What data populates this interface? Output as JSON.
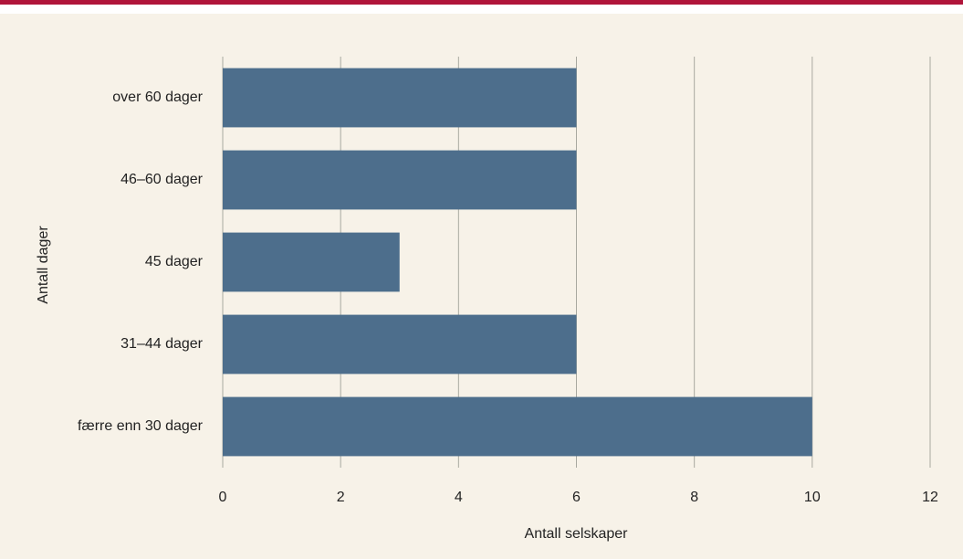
{
  "chart_data": {
    "type": "bar",
    "orientation": "horizontal",
    "categories": [
      "over 60 dager",
      "46–60 dager",
      "45 dager",
      "31–44 dager",
      "færre enn 30 dager"
    ],
    "values": [
      6,
      6,
      3,
      6,
      10
    ],
    "color": "#4d6e8c",
    "xlabel": "Antall selskaper",
    "ylabel": "Antall dager",
    "xlim": [
      0,
      12
    ],
    "xticks": [
      0,
      2,
      4,
      6,
      8,
      10,
      12
    ],
    "grid": true
  }
}
